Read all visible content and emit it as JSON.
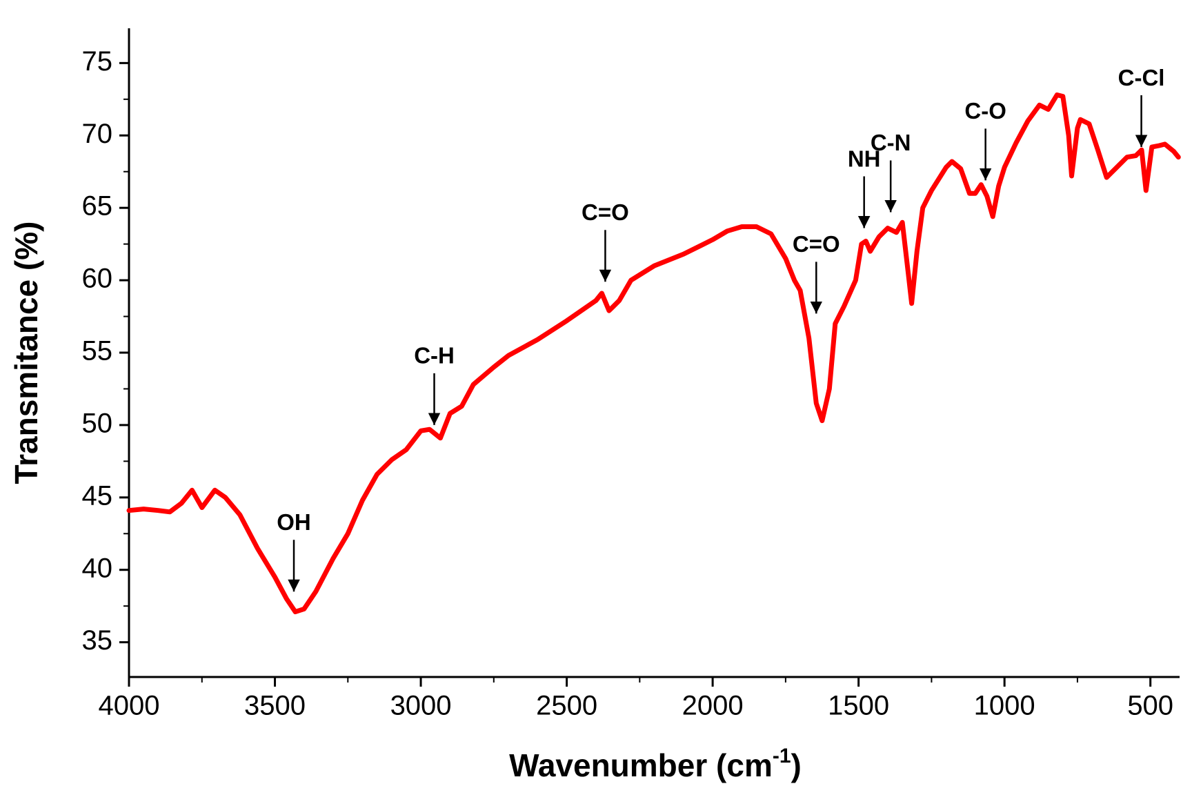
{
  "chart_data": {
    "type": "line",
    "ylabel": "Transmitance (%)",
    "xlabel": [
      "Wavenumber (cm",
      "-1",
      ")"
    ],
    "color": "#ff0000",
    "xlim": [
      4000,
      400
    ],
    "ylim": [
      32.6,
      77.4
    ],
    "xticks": [
      4000,
      3500,
      3000,
      2500,
      2000,
      1500,
      1000,
      500
    ],
    "xticks_minor": [
      3750,
      3250,
      2750,
      2250,
      1750,
      1250,
      750
    ],
    "yticks": [
      35,
      40,
      45,
      50,
      55,
      60,
      65,
      70,
      75
    ],
    "yticks_minor": [
      37.5,
      42.5,
      47.5,
      52.5,
      57.5,
      62.5,
      67.5,
      72.5
    ],
    "x": [
      4000,
      3950,
      3900,
      3860,
      3820,
      3784,
      3750,
      3706,
      3670,
      3620,
      3560,
      3500,
      3460,
      3430,
      3400,
      3360,
      3300,
      3250,
      3200,
      3150,
      3100,
      3050,
      3000,
      2970,
      2933,
      2900,
      2860,
      2820,
      2750,
      2700,
      2600,
      2500,
      2400,
      2380,
      2355,
      2320,
      2280,
      2200,
      2100,
      2000,
      1950,
      1900,
      1850,
      1800,
      1750,
      1720,
      1700,
      1670,
      1645,
      1625,
      1600,
      1580,
      1550,
      1510,
      1490,
      1475,
      1460,
      1430,
      1400,
      1370,
      1350,
      1330,
      1318,
      1300,
      1280,
      1250,
      1200,
      1180,
      1150,
      1120,
      1100,
      1080,
      1060,
      1040,
      1020,
      1000,
      960,
      920,
      880,
      850,
      820,
      800,
      780,
      770,
      750,
      740,
      710,
      680,
      650,
      620,
      580,
      550,
      530,
      515,
      495,
      470,
      450,
      420,
      404
    ],
    "values": [
      44.1,
      44.2,
      44.1,
      44.0,
      44.6,
      45.5,
      44.3,
      45.5,
      45.0,
      43.8,
      41.5,
      39.5,
      38.0,
      37.1,
      37.3,
      38.5,
      40.8,
      42.5,
      44.8,
      46.6,
      47.6,
      48.3,
      49.6,
      49.7,
      49.1,
      50.8,
      51.3,
      52.8,
      54.0,
      54.8,
      55.9,
      57.2,
      58.6,
      59.1,
      57.9,
      58.6,
      60.0,
      61.0,
      61.8,
      62.8,
      63.4,
      63.7,
      63.7,
      63.2,
      61.5,
      60.0,
      59.3,
      56.0,
      51.5,
      50.3,
      52.5,
      57.0,
      58.2,
      60.0,
      62.5,
      62.7,
      62.0,
      63.0,
      63.6,
      63.3,
      64.0,
      60.5,
      58.4,
      62.0,
      65.0,
      66.2,
      67.8,
      68.2,
      67.7,
      66.0,
      66.0,
      66.6,
      65.8,
      64.4,
      66.5,
      67.8,
      69.5,
      71.0,
      72.1,
      71.8,
      72.8,
      72.7,
      70.0,
      67.2,
      70.5,
      71.1,
      70.8,
      69.0,
      67.1,
      67.7,
      68.5,
      68.6,
      69.0,
      66.2,
      69.2,
      69.3,
      69.4,
      68.9,
      68.5
    ],
    "annotations": [
      {
        "text": "OH",
        "x": 3435,
        "y": 38.5
      },
      {
        "text": "C-H",
        "x": 2954,
        "y": 50.0
      },
      {
        "text": "C=O",
        "x": 2368,
        "y": 59.9
      },
      {
        "text": "C=O",
        "x": 1645,
        "y": 57.7
      },
      {
        "text": "NH",
        "x": 1481,
        "y": 63.6
      },
      {
        "text": "C-N",
        "x": 1390,
        "y": 64.7
      },
      {
        "text": "C-O",
        "x": 1065,
        "y": 66.9
      },
      {
        "text": "C-Cl",
        "x": 531,
        "y": 69.2
      }
    ]
  }
}
